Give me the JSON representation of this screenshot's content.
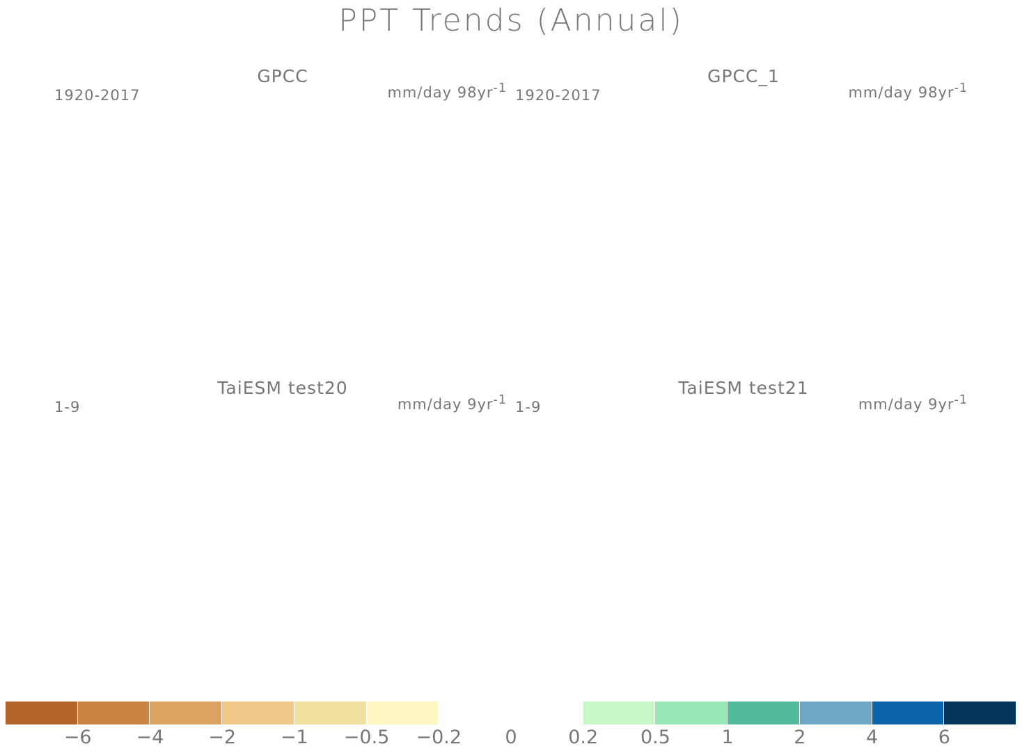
{
  "title": "PPT Trends (Annual)",
  "panels": [
    {
      "title": "GPCC",
      "period": "1920-2017",
      "units": "mm/day 98yr",
      "units_sup": "-1",
      "pattern": "obs"
    },
    {
      "title": "GPCC_1",
      "period": "1920-2017",
      "units": "mm/day 98yr",
      "units_sup": "-1",
      "pattern": "obs"
    },
    {
      "title": "TaiESM test20",
      "period": "1-9",
      "units": "mm/day 9yr",
      "units_sup": "-1",
      "pattern": "model"
    },
    {
      "title": "TaiESM test21",
      "period": "1-9",
      "units": "mm/day 9yr",
      "units_sup": "-1",
      "pattern": "model"
    }
  ],
  "colorbar": {
    "colors": [
      "#b5652a",
      "#cc8540",
      "#dba260",
      "#f0c888",
      "#f1dfa0",
      "#fdf5c2",
      "#ffffff",
      "#ffffff",
      "#c6f7c6",
      "#96e8b4",
      "#52bb9c",
      "#6da7c5",
      "#0e64a8",
      "#04365a"
    ],
    "labels": [
      "-6",
      "-4",
      "-2",
      "-1",
      "-0.5",
      "-0.2",
      "0",
      "0.2",
      "0.5",
      "1",
      "2",
      "4",
      "6"
    ]
  }
}
